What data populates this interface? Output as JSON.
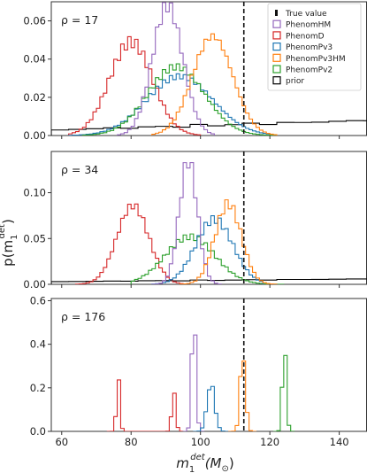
{
  "chart_data": {
    "type": "step",
    "xlabel": "m_1^{det}(M_⊙)",
    "xlabel_parts": {
      "main": "m",
      "sub": "1",
      "sup": "det",
      "paren": "(M",
      "sun": "⊙",
      "close": ")"
    },
    "ylabel": "p(m_1^{det})",
    "ylabel_parts": {
      "open": "p(m",
      "sub": "1",
      "sup": "det",
      "close": ")"
    },
    "xlim": [
      57,
      148
    ],
    "xticks": [
      60,
      80,
      100,
      120,
      140
    ],
    "true_value": 112.5,
    "legend": {
      "placement": "upper right of top panel",
      "entries": [
        {
          "label": "True value",
          "color": "#000000",
          "style": "dashed"
        },
        {
          "label": "PhenomHM",
          "color": "#9467bd"
        },
        {
          "label": "PhenomD",
          "color": "#d62728"
        },
        {
          "label": "PhenomPv3",
          "color": "#1f77b4"
        },
        {
          "label": "PhenomPv3HM",
          "color": "#ff7f0e"
        },
        {
          "label": "PhenomPv2",
          "color": "#2ca02c"
        },
        {
          "label": "prior",
          "color": "#000000"
        }
      ]
    },
    "panels": [
      {
        "snr_label": "ρ = 17",
        "ylim": [
          0,
          0.07
        ],
        "yticks": [
          0.0,
          0.02,
          0.04,
          0.06
        ],
        "ytick_labels": [
          "0.00",
          "0.02",
          "0.04",
          "0.06"
        ],
        "series": [
          {
            "name": "prior",
            "color": "#000000",
            "kind": "linear",
            "y0": 0.003,
            "y1": 0.008
          },
          {
            "name": "PhenomD",
            "color": "#d62728",
            "kind": "gauss",
            "components": [
              {
                "mu": 80,
                "sigma": 6.2,
                "amp": 0.049
              }
            ],
            "xmin": 62,
            "xmax": 100
          },
          {
            "name": "PhenomPv3",
            "color": "#1f77b4",
            "kind": "gauss",
            "components": [
              {
                "mu": 94,
                "sigma": 9.5,
                "amp": 0.031
              }
            ],
            "xmin": 62,
            "xmax": 120
          },
          {
            "name": "PhenomPv2",
            "color": "#2ca02c",
            "kind": "gauss",
            "components": [
              {
                "mu": 93,
                "sigma": 8.2,
                "amp": 0.036
              }
            ],
            "xmin": 66,
            "xmax": 122
          },
          {
            "name": "PhenomHM",
            "color": "#9467bd",
            "kind": "gauss",
            "components": [
              {
                "mu": 90.5,
                "sigma": 4.4,
                "amp": 0.068
              }
            ],
            "xmin": 76,
            "xmax": 104
          },
          {
            "name": "PhenomPv3HM",
            "color": "#ff7f0e",
            "kind": "gauss",
            "components": [
              {
                "mu": 103.5,
                "sigma": 5.8,
                "amp": 0.052
              }
            ],
            "xmin": 86,
            "xmax": 122
          }
        ]
      },
      {
        "snr_label": "ρ = 34",
        "ylim": [
          0,
          0.145
        ],
        "yticks": [
          0.0,
          0.05,
          0.1
        ],
        "ytick_labels": [
          "0.00",
          "0.05",
          "0.10"
        ],
        "series": [
          {
            "name": "prior",
            "color": "#000000",
            "kind": "linear",
            "y0": 0.003,
            "y1": 0.006
          },
          {
            "name": "PhenomD",
            "color": "#d62728",
            "kind": "gauss",
            "components": [
              {
                "mu": 80.5,
                "sigma": 4.6,
                "amp": 0.086
              }
            ],
            "xmin": 64,
            "xmax": 96
          },
          {
            "name": "PhenomPv2",
            "color": "#2ca02c",
            "kind": "gauss",
            "components": [
              {
                "mu": 97,
                "sigma": 7.2,
                "amp": 0.052
              }
            ],
            "xmin": 80,
            "xmax": 124
          },
          {
            "name": "PhenomPv3",
            "color": "#1f77b4",
            "kind": "gauss",
            "components": [
              {
                "mu": 104,
                "sigma": 5.4,
                "amp": 0.071
              }
            ],
            "xmin": 86,
            "xmax": 118
          },
          {
            "name": "PhenomHM",
            "color": "#9467bd",
            "kind": "gauss",
            "components": [
              {
                "mu": 96.5,
                "sigma": 2.6,
                "amp": 0.135
              }
            ],
            "xmin": 86,
            "xmax": 106
          },
          {
            "name": "PhenomPv3HM",
            "color": "#ff7f0e",
            "kind": "gauss",
            "components": [
              {
                "mu": 108,
                "sigma": 3.8,
                "amp": 0.088
              }
            ],
            "xmin": 94,
            "xmax": 122
          }
        ]
      },
      {
        "snr_label": "ρ = 176",
        "ylim": [
          0,
          0.61
        ],
        "yticks": [
          0.0,
          0.2,
          0.4,
          0.6
        ],
        "ytick_labels": [
          "0.0",
          "0.2",
          "0.4",
          "0.6"
        ],
        "series": [
          {
            "name": "PhenomD",
            "color": "#d62728",
            "kind": "gauss",
            "components": [
              {
                "mu": 76.3,
                "sigma": 0.5,
                "amp": 0.25
              },
              {
                "mu": 92.3,
                "sigma": 0.55,
                "amp": 0.19
              }
            ],
            "xmin": 73,
            "xmax": 96
          },
          {
            "name": "PhenomHM",
            "color": "#9467bd",
            "kind": "gauss",
            "components": [
              {
                "mu": 98.1,
                "sigma": 0.6,
                "amp": 0.57
              }
            ],
            "xmin": 95,
            "xmax": 101
          },
          {
            "name": "PhenomPv3",
            "color": "#1f77b4",
            "kind": "gauss",
            "components": [
              {
                "mu": 103,
                "sigma": 1.1,
                "amp": 0.22
              }
            ],
            "xmin": 98,
            "xmax": 108
          },
          {
            "name": "PhenomPv3HM",
            "color": "#ff7f0e",
            "kind": "gauss",
            "components": [
              {
                "mu": 112.2,
                "sigma": 0.75,
                "amp": 0.37
              }
            ],
            "xmin": 108,
            "xmax": 116
          },
          {
            "name": "PhenomPv2",
            "color": "#2ca02c",
            "kind": "gauss",
            "components": [
              {
                "mu": 124.2,
                "sigma": 0.55,
                "amp": 0.43
              }
            ],
            "xmin": 121,
            "xmax": 127
          }
        ]
      }
    ]
  }
}
